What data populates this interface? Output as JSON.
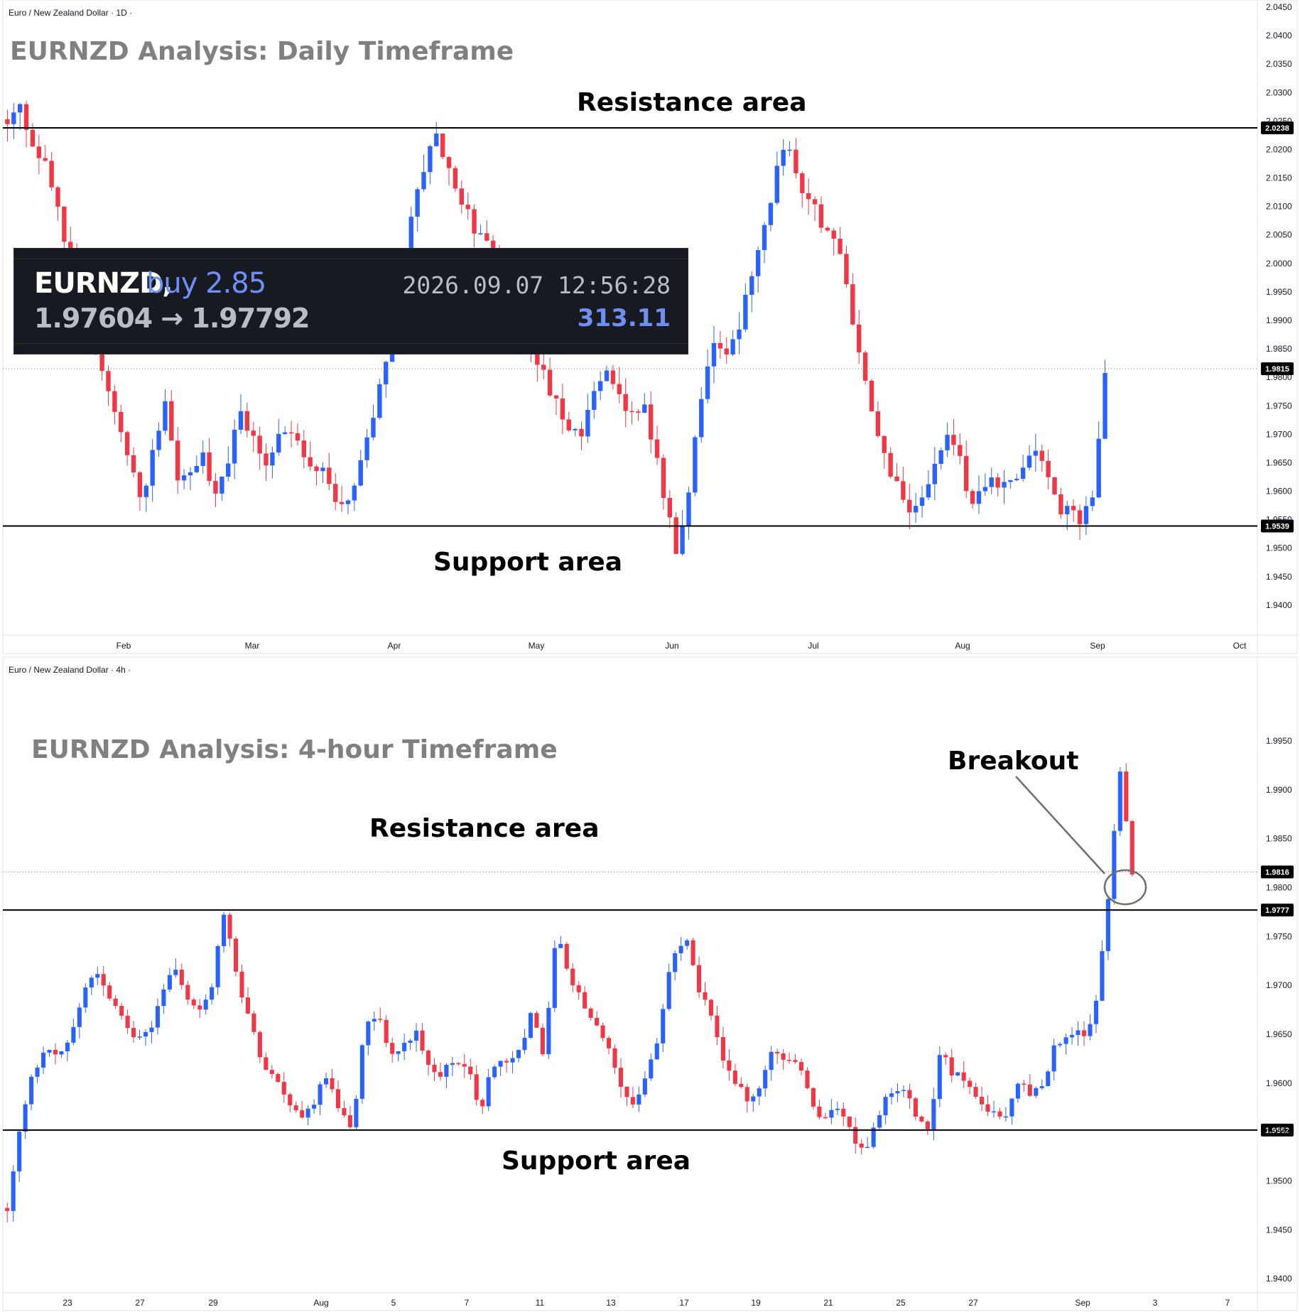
{
  "colors": {
    "up": "#2962ff",
    "down": "#f23645",
    "level": "#000000",
    "text": "#131722"
  },
  "trade_box": {
    "symbol": "EURNZD,",
    "side": "buy 2.85",
    "timestamp": "2026.09.07 12:56:28",
    "prices": "1.97604 → 1.97792",
    "profit": "313.11"
  },
  "chart_data": [
    {
      "type": "candlestick",
      "symbol_label": "Euro / New Zealand Dollar · 1D ·",
      "title": "EURNZD Analysis: Daily Timeframe",
      "ylim": [
        1.935,
        2.045
      ],
      "y_ticks": [
        "2.0450",
        "2.0400",
        "2.0350",
        "2.0300",
        "2.0250",
        "2.0200",
        "2.0150",
        "2.0100",
        "2.0050",
        "2.0000",
        "1.9950",
        "1.9900",
        "1.9850",
        "1.9800",
        "1.9750",
        "1.9700",
        "1.9650",
        "1.9600",
        "1.9550",
        "1.9500",
        "1.9450",
        "1.9400"
      ],
      "x_ticks": [
        "Feb",
        "Mar",
        "Apr",
        "May",
        "Jun",
        "Jul",
        "Aug",
        "Sep",
        "Oct"
      ],
      "levels": [
        {
          "name": "Resistance area",
          "value": 2.0238,
          "label": "2.0238"
        },
        {
          "name": "Support area",
          "value": 1.9539,
          "label": "1.9539"
        }
      ],
      "current_price": {
        "value": 1.9815,
        "label": "1.9815"
      },
      "annotations": [
        "Resistance area",
        "Support area"
      ],
      "anchors": [
        2.025,
        2.027,
        2.022,
        2.018,
        2.01,
        2.002,
        1.994,
        1.988,
        1.98,
        1.972,
        1.966,
        1.958,
        1.968,
        1.976,
        1.962,
        1.964,
        1.966,
        1.96,
        1.965,
        1.974,
        1.97,
        1.964,
        1.968,
        1.972,
        1.969,
        1.962,
        1.965,
        1.958,
        1.957,
        1.965,
        1.972,
        1.983,
        1.997,
        2.007,
        2.016,
        2.024,
        2.018,
        2.012,
        2.007,
        2.004,
        2.002,
        1.996,
        1.99,
        1.984,
        1.98,
        1.976,
        1.972,
        1.97,
        1.976,
        1.983,
        1.978,
        1.972,
        1.976,
        1.968,
        1.958,
        1.948,
        1.962,
        1.979,
        1.986,
        1.983,
        1.989,
        1.997,
        2.006,
        2.016,
        2.022,
        2.014,
        2.01,
        2.006,
        2.004,
        1.994,
        1.982,
        1.974,
        1.966,
        1.96,
        1.957,
        1.958,
        1.965,
        1.97,
        1.966,
        1.958,
        1.96,
        1.962,
        1.962,
        1.964,
        1.968,
        1.964,
        1.958,
        1.956,
        1.955,
        1.959,
        1.981
      ],
      "x_range": [
        1,
        276
      ]
    },
    {
      "type": "candlestick",
      "symbol_label": "Euro / New Zealand Dollar · 4h ·",
      "title": "EURNZD Analysis: 4-hour Timeframe",
      "ylim": [
        1.9387,
        2.0027
      ],
      "y_ticks": [
        "1.9950",
        "1.9900",
        "1.9850",
        "1.9800",
        "1.9750",
        "1.9700",
        "1.9650",
        "1.9600",
        "1.9550",
        "1.9500",
        "1.9450",
        "1.9400"
      ],
      "x_ticks": [
        "23",
        "27",
        "29",
        "Aug",
        "5",
        "7",
        "11",
        "13",
        "17",
        "19",
        "21",
        "25",
        "27",
        "Sep",
        "3",
        "7"
      ],
      "levels": [
        {
          "name": "Resistance area",
          "value": 1.9777,
          "label": "1.9777"
        },
        {
          "name": "Support area",
          "value": 1.9552,
          "label": "1.9552"
        }
      ],
      "current_price": {
        "value": 1.9816,
        "label": "1.9816"
      },
      "annotations": [
        "Resistance area",
        "Support area",
        "Breakout"
      ],
      "anchors": [
        1.947,
        1.956,
        1.961,
        1.963,
        1.963,
        1.965,
        1.97,
        1.971,
        1.969,
        1.967,
        1.964,
        1.965,
        1.969,
        1.972,
        1.969,
        1.967,
        1.97,
        1.978,
        1.971,
        1.966,
        1.962,
        1.96,
        1.958,
        1.956,
        1.958,
        1.961,
        1.957,
        1.955,
        1.966,
        1.967,
        1.963,
        1.964,
        1.965,
        1.962,
        1.961,
        1.962,
        1.962,
        1.957,
        1.962,
        1.962,
        1.963,
        1.967,
        1.963,
        1.976,
        1.971,
        1.968,
        1.966,
        1.964,
        1.96,
        1.958,
        1.961,
        1.965,
        1.973,
        1.975,
        1.97,
        1.967,
        1.962,
        1.96,
        1.958,
        1.96,
        1.964,
        1.962,
        1.962,
        1.958,
        1.956,
        1.958,
        1.955,
        1.953,
        1.956,
        1.959,
        1.96,
        1.957,
        1.955,
        1.963,
        1.961,
        1.96,
        1.958,
        1.957,
        1.956,
        1.96,
        1.959,
        1.96,
        1.964,
        1.965,
        1.965,
        1.966,
        1.977,
        1.992,
        1.9816
      ],
      "x_range": [
        1,
        304
      ]
    }
  ]
}
